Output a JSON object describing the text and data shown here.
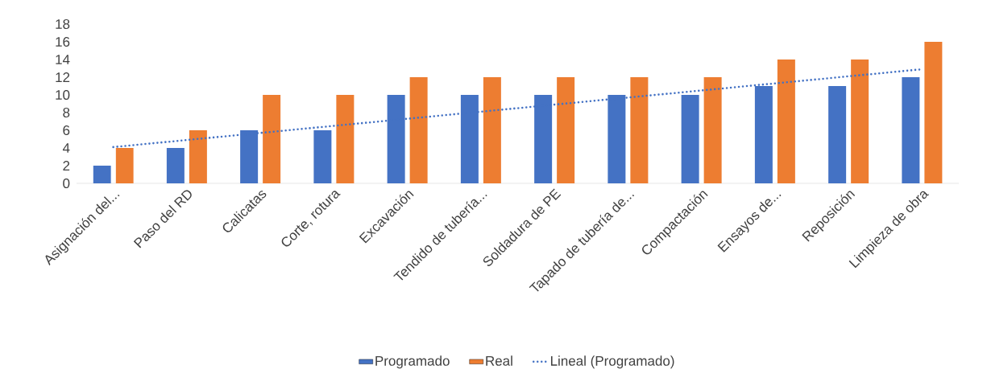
{
  "chart_data": {
    "type": "bar",
    "categories": [
      "Asignación  del...",
      "Paso del RD",
      "Calicatas",
      "Corte, rotura",
      "Excavación",
      "Tendido de tubería...",
      "Soldadura de PE",
      "Tapado de tubería de...",
      "Compactación",
      "Ensayos de...",
      "Reposición",
      "Limpieza de obra"
    ],
    "series": [
      {
        "name": "Programado",
        "color": "#4472c4",
        "values": [
          2,
          4,
          6,
          6,
          10,
          10,
          10,
          10,
          10,
          11,
          11,
          12
        ]
      },
      {
        "name": "Real",
        "color": "#ed7d31",
        "values": [
          4,
          6,
          10,
          10,
          12,
          12,
          12,
          12,
          12,
          14,
          14,
          16
        ]
      },
      {
        "name": "Lineal (Programado)",
        "type": "line",
        "line_style": "dotted",
        "color": "#4472c4",
        "values": [
          4.1,
          4.9,
          5.7,
          6.5,
          7.3,
          8.1,
          8.9,
          9.7,
          10.5,
          11.3,
          12.1,
          12.9
        ]
      }
    ],
    "ylim": [
      0,
      18
    ],
    "yticks": [
      0,
      2,
      4,
      6,
      8,
      10,
      12,
      14,
      16,
      18
    ],
    "legend": "bottom"
  }
}
